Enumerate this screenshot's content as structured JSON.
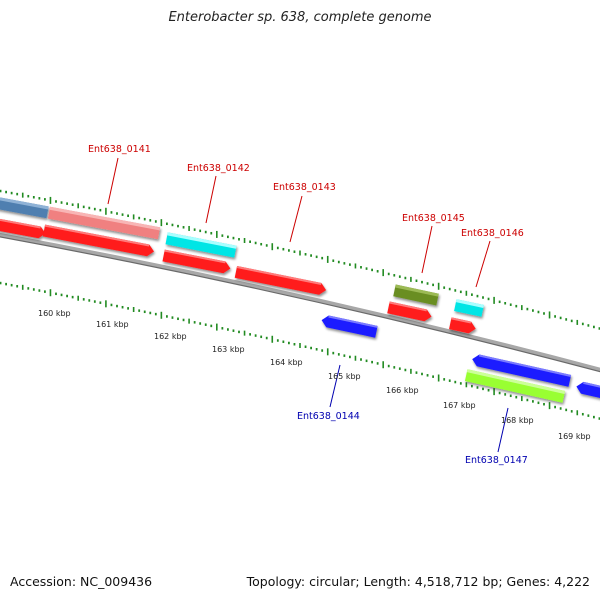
{
  "title": "Enterobacter sp. 638, complete genome",
  "footer": {
    "accession": "Accession: NC_009436",
    "summary": "Topology: circular; Length: 4,518,712 bp; Genes: 4,222"
  },
  "scale_labels": [
    "160 kbp",
    "161 kbp",
    "162 kbp",
    "163 kbp",
    "164 kbp",
    "165 kbp",
    "166 kbp",
    "167 kbp",
    "168 kbp",
    "169 kbp"
  ],
  "gene_labels": [
    {
      "text": "Ent638_0141",
      "strand": "forward"
    },
    {
      "text": "Ent638_0142",
      "strand": "forward"
    },
    {
      "text": "Ent638_0143",
      "strand": "forward"
    },
    {
      "text": "Ent638_0144",
      "strand": "reverse"
    },
    {
      "text": "Ent638_0145",
      "strand": "forward"
    },
    {
      "text": "Ent638_0146",
      "strand": "forward"
    },
    {
      "text": "Ent638_0147",
      "strand": "reverse"
    }
  ],
  "colors": {
    "forward_gene": "#ff1a1a",
    "reverse_gene": "#1a1aff",
    "forward_label": "#cc0000",
    "reverse_label": "#0000b0",
    "backbone": "#888888",
    "tick": "#228b22"
  }
}
